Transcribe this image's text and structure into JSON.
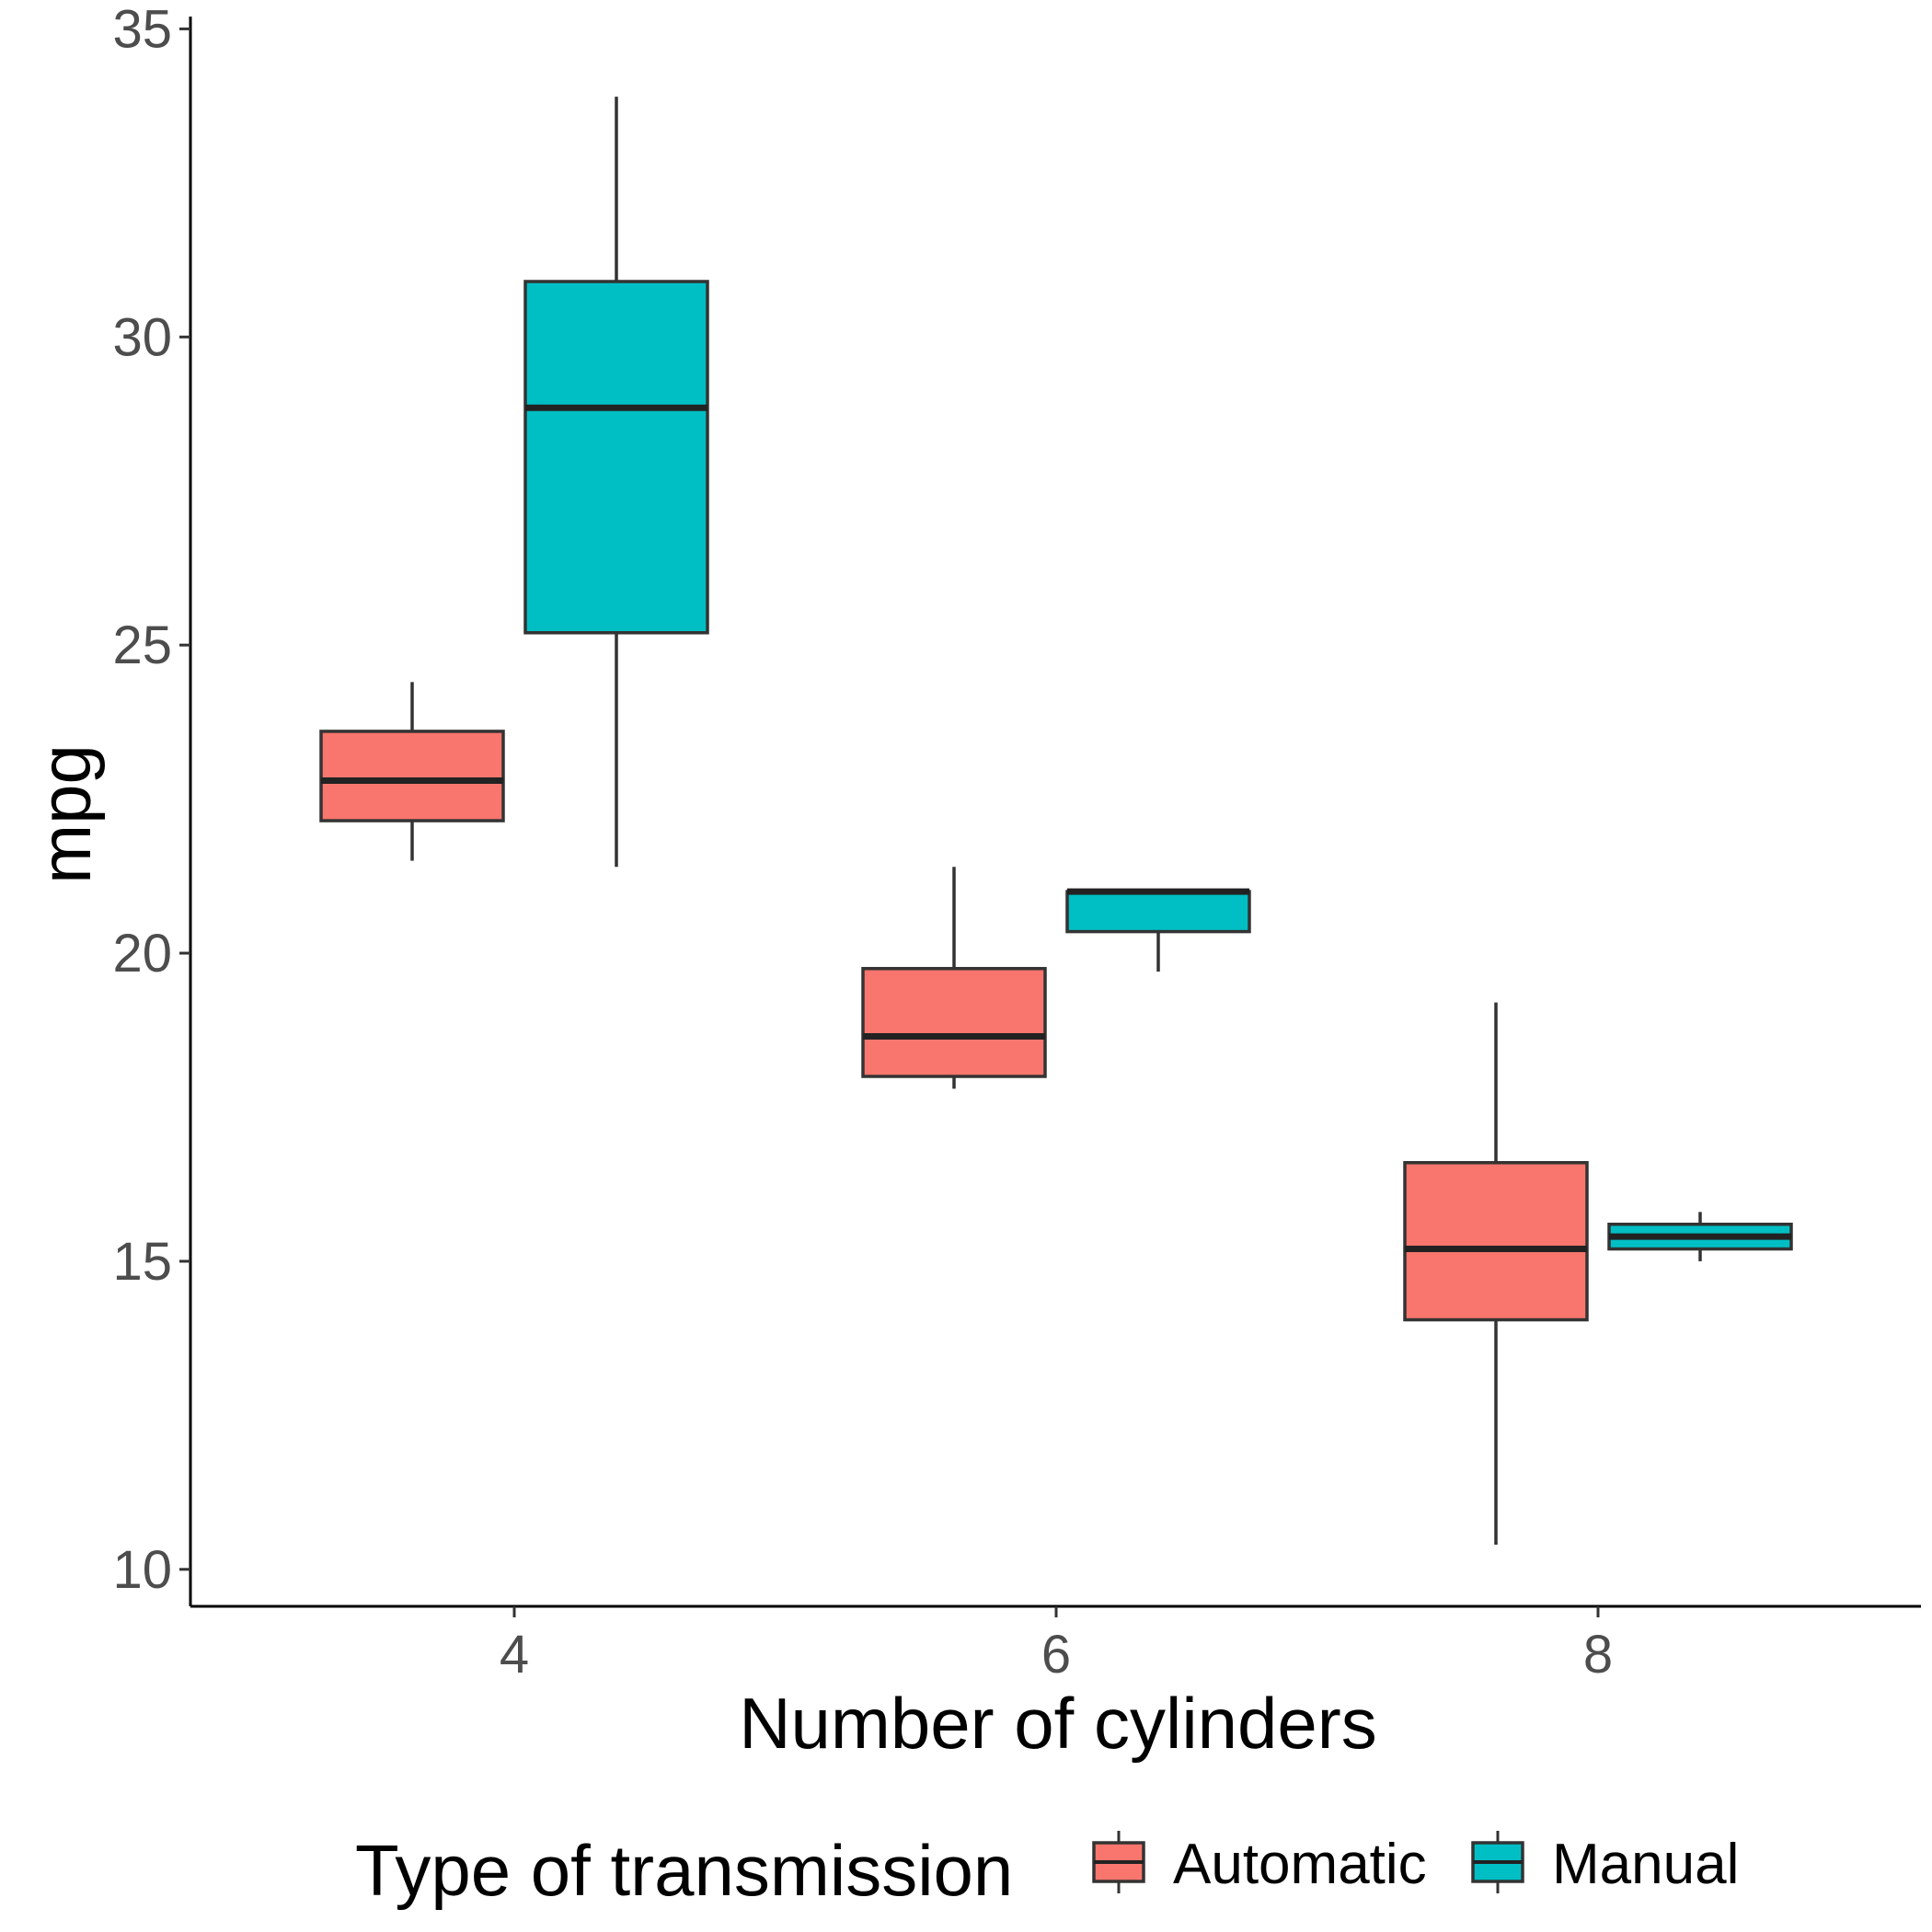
{
  "chart_data": {
    "type": "boxplot",
    "xlabel": "Number of cylinders",
    "ylabel": "mpg",
    "categories": [
      "4",
      "6",
      "8"
    ],
    "ylim": [
      9.4,
      35.2
    ],
    "yticks": [
      10,
      15,
      20,
      25,
      30,
      35
    ],
    "grid": false,
    "legend": {
      "title": "Type of transmission",
      "position": "bottom"
    },
    "series": [
      {
        "name": "Automatic",
        "color": "#F8766D",
        "boxes": [
          {
            "category": "4",
            "whisker_low": 21.5,
            "q1": 22.15,
            "median": 22.8,
            "q3": 23.6,
            "whisker_high": 24.4
          },
          {
            "category": "6",
            "whisker_low": 17.8,
            "q1": 18.0,
            "median": 18.65,
            "q3": 19.75,
            "whisker_high": 21.4
          },
          {
            "category": "8",
            "whisker_low": 10.4,
            "q1": 14.05,
            "median": 15.2,
            "q3": 16.6,
            "whisker_high": 19.2
          }
        ]
      },
      {
        "name": "Manual",
        "color": "#00BFC4",
        "boxes": [
          {
            "category": "4",
            "whisker_low": 21.4,
            "q1": 25.2,
            "median": 28.85,
            "q3": 30.9,
            "whisker_high": 33.9
          },
          {
            "category": "6",
            "whisker_low": 19.7,
            "q1": 20.35,
            "median": 21.0,
            "q3": 21.0,
            "whisker_high": 21.0
          },
          {
            "category": "8",
            "whisker_low": 15.0,
            "q1": 15.2,
            "median": 15.4,
            "q3": 15.6,
            "whisker_high": 15.8
          }
        ]
      }
    ]
  }
}
